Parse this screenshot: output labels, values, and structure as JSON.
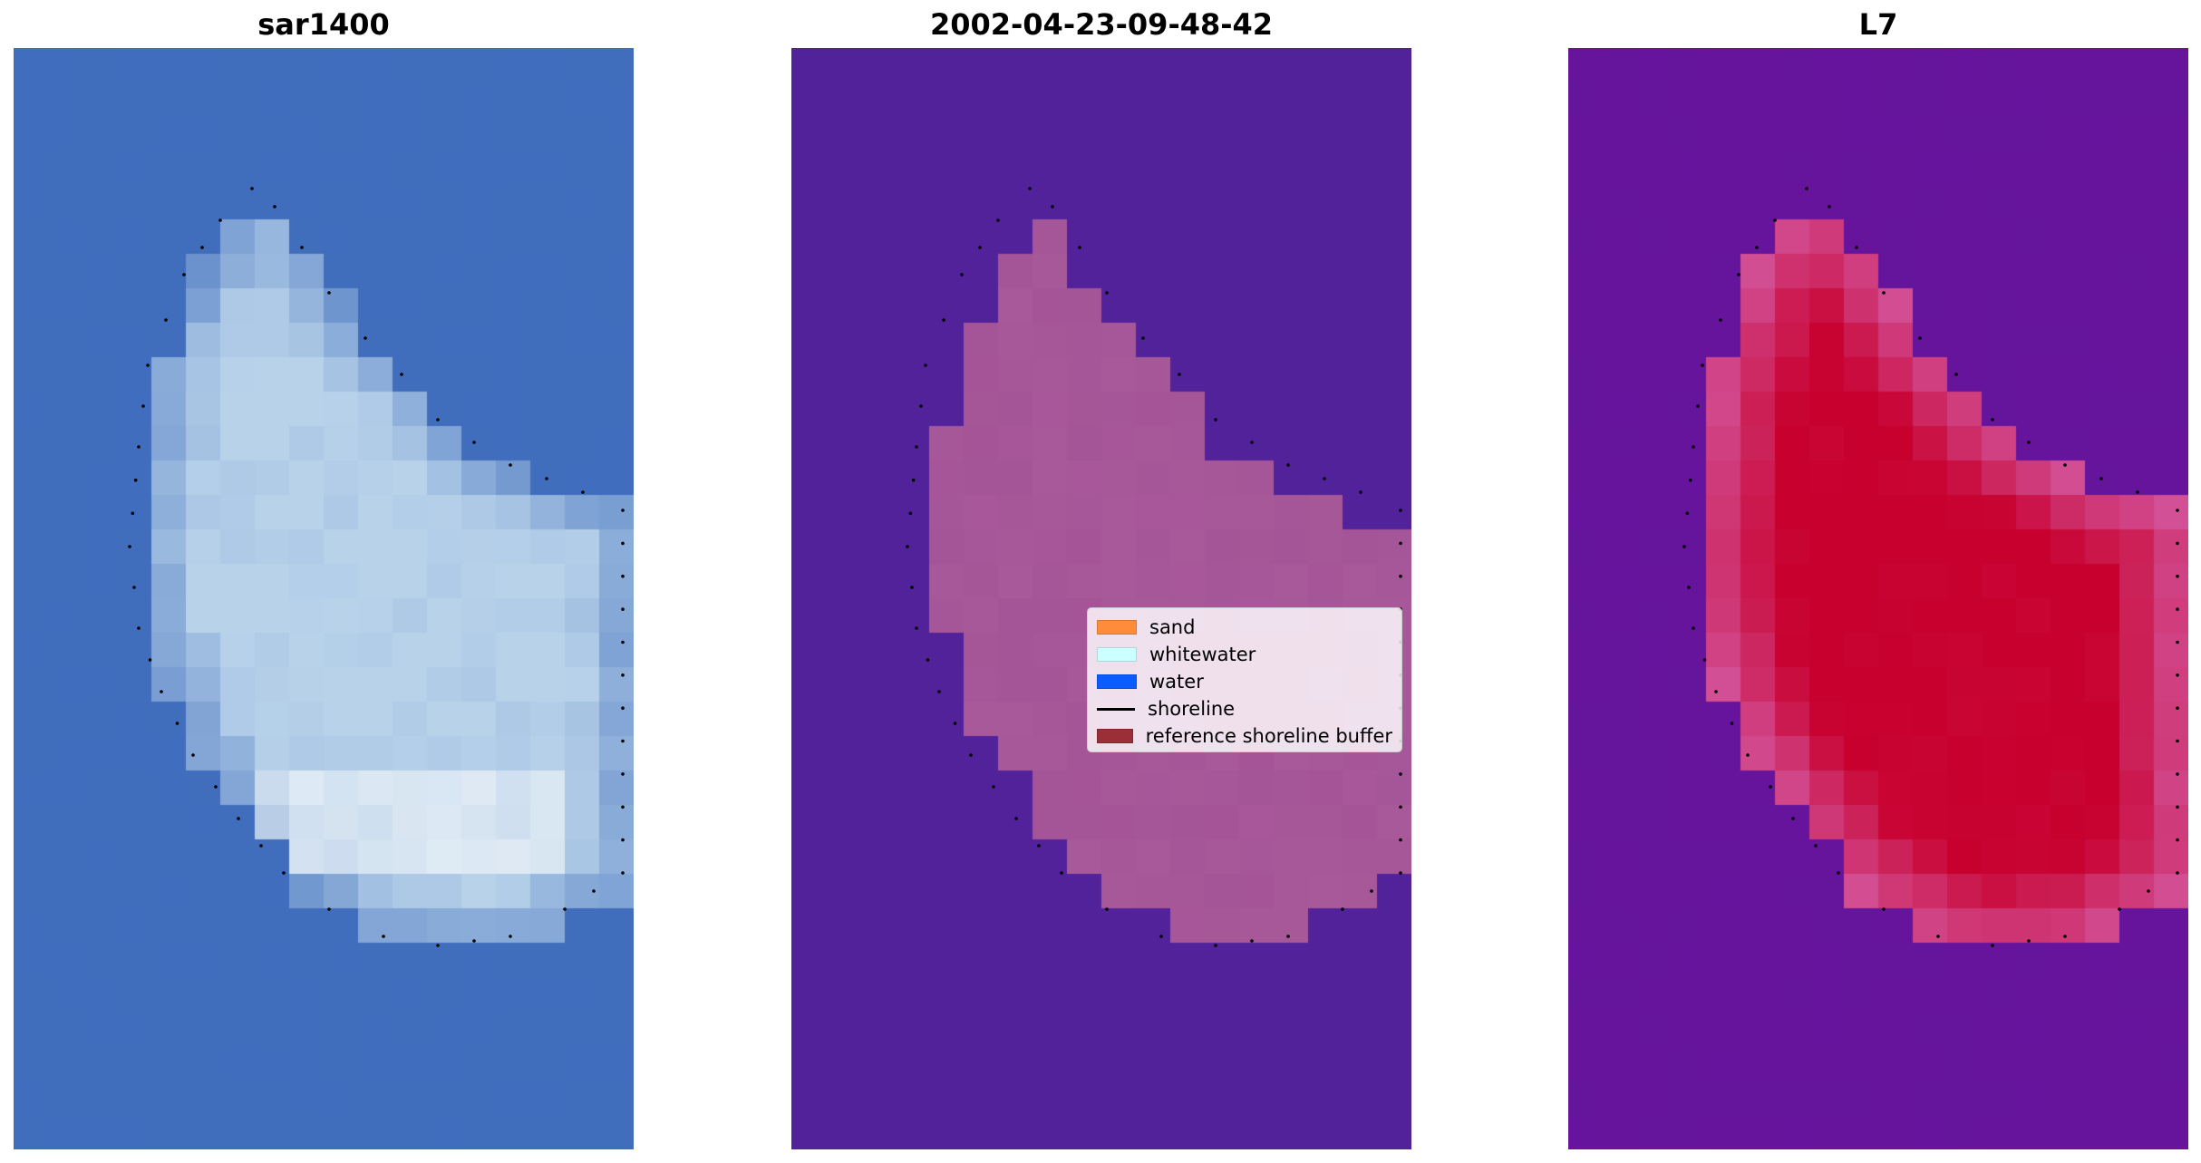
{
  "panels": [
    {
      "title": "sar1400"
    },
    {
      "title": "2002-04-23-09-48-42"
    },
    {
      "title": "L7"
    }
  ],
  "legend": {
    "items": [
      {
        "label": "sand",
        "color": "#ff8c3a",
        "kind": "patch"
      },
      {
        "label": "whitewater",
        "color": "#ccffff",
        "kind": "patch"
      },
      {
        "label": "water",
        "color": "#0a5cff",
        "kind": "patch"
      },
      {
        "label": "shoreline",
        "color": "#000000",
        "kind": "line"
      },
      {
        "label": "reference shoreline buffer",
        "color": "#9b2f37",
        "kind": "patch"
      }
    ]
  },
  "colors": {
    "rgb_water": "#3e6dbc",
    "rgb_land": "#b8d2ea",
    "class_background": "#52229a",
    "class_land": "#a05194",
    "index_low": "#6a14a0",
    "index_high": "#c8002e"
  }
}
